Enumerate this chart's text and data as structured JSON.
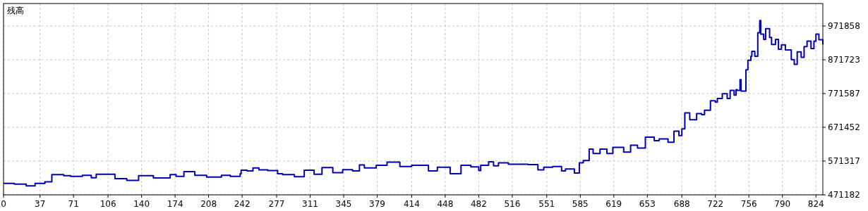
{
  "chart_data": {
    "type": "step",
    "title": "残高",
    "x": [
      0,
      11,
      23,
      32,
      42,
      49,
      61,
      68,
      80,
      89,
      94,
      99,
      113,
      125,
      137,
      152,
      163,
      169,
      175,
      183,
      194,
      206,
      221,
      230,
      240,
      241,
      247,
      253,
      259,
      268,
      278,
      283,
      295,
      305,
      315,
      323,
      334,
      344,
      354,
      361,
      366,
      378,
      389,
      402,
      414,
      431,
      440,
      453,
      464,
      474,
      482,
      484,
      492,
      497,
      502,
      512,
      521,
      532,
      542,
      548,
      557,
      566,
      570,
      579,
      584,
      588,
      594,
      598,
      605,
      612,
      618,
      629,
      636,
      643,
      651,
      660,
      665,
      674,
      680,
      685,
      688,
      691,
      696,
      703,
      708,
      711,
      717,
      722,
      724,
      729,
      734,
      737,
      741,
      743,
      744,
      747,
      748,
      751,
      753,
      755,
      758,
      759,
      762,
      765,
      767,
      768,
      771,
      773,
      777,
      779,
      783,
      786,
      789,
      793,
      799,
      802,
      805,
      809,
      812,
      815,
      819,
      822,
      824,
      827,
      831
    ],
    "series": [
      {
        "color": "#0000b4",
        "values": [
          505000,
          503000,
          498000,
          505000,
          510000,
          531000,
          528000,
          526000,
          529000,
          522000,
          532000,
          532000,
          519000,
          514000,
          528000,
          521000,
          521000,
          531000,
          526000,
          540000,
          529000,
          524000,
          529000,
          526000,
          534000,
          544000,
          542000,
          551000,
          545000,
          543000,
          534000,
          531000,
          525000,
          544000,
          532000,
          552000,
          537000,
          546000,
          542000,
          560000,
          551000,
          559000,
          568000,
          555000,
          559000,
          542000,
          553000,
          534000,
          559000,
          554000,
          543000,
          559000,
          569000,
          557000,
          566000,
          562000,
          562000,
          561000,
          545000,
          553000,
          555000,
          542000,
          548000,
          536000,
          566000,
          573000,
          607000,
          594000,
          607000,
          594000,
          612000,
          598000,
          618000,
          610000,
          642000,
          632000,
          637000,
          627000,
          660000,
          647000,
          667000,
          714000,
          694000,
          712000,
          709000,
          722000,
          750000,
          746000,
          757000,
          771000,
          757000,
          781000,
          767000,
          783000,
          781000,
          813000,
          779000,
          779000,
          842000,
          870000,
          882000,
          897000,
          882000,
          952000,
          988000,
          948000,
          932000,
          964000,
          938000,
          917000,
          932000,
          903000,
          916000,
          901000,
          872000,
          858000,
          895000,
          879000,
          911000,
          927000,
          905000,
          927000,
          948000,
          931000,
          917000
        ]
      }
    ],
    "xlim": [
      0,
      831
    ],
    "ylim": [
      471182,
      1038600
    ],
    "xticks": [
      0,
      37,
      71,
      106,
      140,
      174,
      208,
      242,
      277,
      311,
      345,
      379,
      414,
      448,
      482,
      516,
      551,
      585,
      619,
      653,
      688,
      722,
      756,
      790,
      824
    ],
    "yticks": [
      471182,
      571317,
      671452,
      771587,
      871723,
      971858
    ],
    "grid": true,
    "marker": "none",
    "line_style": "solid"
  }
}
